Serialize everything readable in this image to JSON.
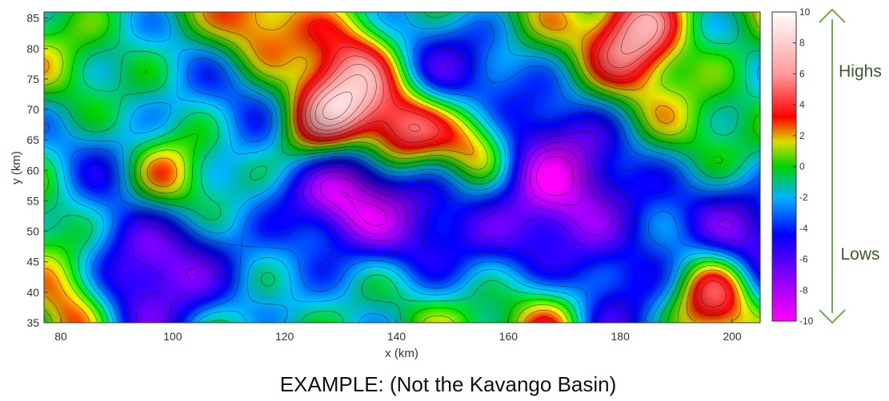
{
  "chart_data": {
    "type": "heatmap",
    "xlabel": "x (km)",
    "ylabel": "y (km)",
    "xlim": [
      77,
      205
    ],
    "ylim": [
      35,
      86
    ],
    "xticks": [
      80,
      100,
      120,
      140,
      160,
      180,
      200
    ],
    "yticks": [
      35,
      40,
      45,
      50,
      55,
      60,
      65,
      70,
      75,
      80,
      85
    ],
    "colorbar": {
      "ticks": [
        -10,
        -8,
        -6,
        -4,
        -2,
        0,
        2,
        4,
        6,
        8,
        10
      ],
      "tick_labels": [
        "-10",
        "-8",
        "-6",
        "-4",
        "-2",
        "0",
        "2",
        "4",
        "6",
        "8",
        "10"
      ],
      "range": [
        -10,
        10
      ],
      "colors": [
        "#ff00ff",
        "#9b00ff",
        "#0000ff",
        "#00b4ff",
        "#00d200",
        "#dcdc00",
        "#ff0000",
        "#ff9b9b",
        "#ffffff"
      ]
    },
    "features": [
      {
        "kind": "high",
        "x": 130,
        "y": 70,
        "value": 8
      },
      {
        "kind": "high",
        "x": 141,
        "y": 66,
        "value": 8
      },
      {
        "kind": "high",
        "x": 154,
        "y": 65,
        "value": 6
      },
      {
        "kind": "high",
        "x": 124,
        "y": 65,
        "value": 7
      },
      {
        "kind": "high",
        "x": 98,
        "y": 58,
        "value": 5
      },
      {
        "kind": "high",
        "x": 197,
        "y": 40,
        "value": 7
      },
      {
        "kind": "high",
        "x": 183,
        "y": 83,
        "value": 7
      },
      {
        "kind": "high",
        "x": 168,
        "y": 36,
        "value": 5
      },
      {
        "kind": "high",
        "x": 82,
        "y": 36,
        "value": 5
      },
      {
        "kind": "high",
        "x": 115,
        "y": 83,
        "value": 3
      },
      {
        "kind": "high",
        "x": 133,
        "y": 79,
        "value": 3
      },
      {
        "kind": "low",
        "x": 128,
        "y": 58,
        "value": -9
      },
      {
        "kind": "low",
        "x": 168,
        "y": 57,
        "value": -9
      },
      {
        "kind": "low",
        "x": 96,
        "y": 41,
        "value": -8
      },
      {
        "kind": "low",
        "x": 150,
        "y": 73,
        "value": -5
      },
      {
        "kind": "low",
        "x": 92,
        "y": 64,
        "value": -3
      },
      {
        "kind": "low",
        "x": 143,
        "y": 50,
        "value": -4
      },
      {
        "kind": "low",
        "x": 203,
        "y": 49,
        "value": -6
      },
      {
        "kind": "low",
        "x": 112,
        "y": 70,
        "value": -2
      },
      {
        "kind": "low",
        "x": 180,
        "y": 40,
        "value": -5
      }
    ]
  },
  "annotations": {
    "highs": "Highs",
    "lows": "Lows",
    "arrow_color": "#70ad47"
  },
  "caption": "EXAMPLE: (Not the Kavango Basin)"
}
